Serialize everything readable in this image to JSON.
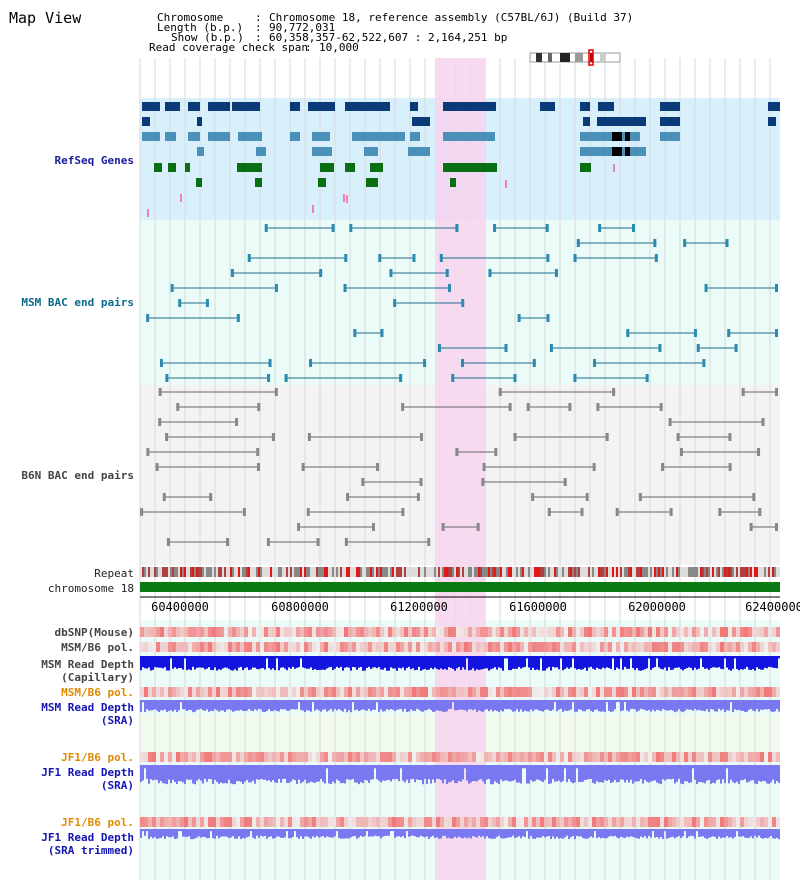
{
  "title": "Map View",
  "header": {
    "chromosome_key": "Chromosome",
    "chromosome_val": "Chromosome 18, reference assembly (C57BL/6J) (Build 37)",
    "length_key": "Length (b.p.)",
    "length_val": "90,772,031",
    "show_key": "Show (b.p.)",
    "show_val": "60,358,357-62,522,607 : 2,164,251 bp",
    "coverage_key": "Read coverage check span",
    "coverage_val": "10,000"
  },
  "tracks": {
    "refseq": "RefSeq Genes",
    "msm_bac": "MSM BAC end pairs",
    "b6n_bac": "B6N BAC end pairs",
    "repeat": "Repeat",
    "chromosome": "chromosome 18",
    "dbsnp": "dbSNP(Mouse)",
    "msm_b6_pol_1": "MSM/B6 pol.",
    "msm_read_depth_cap_1": "MSM Read Depth",
    "msm_read_depth_cap_2": "(Capillary)",
    "msm_b6_pol_2": "MSM/B6 pol.",
    "msm_read_depth_sra_1": "MSM Read Depth",
    "msm_read_depth_sra_2": "(SRA)",
    "jf1_b6_pol_1": "JF1/B6 pol.",
    "jf1_read_depth_sra_1": "JF1 Read Depth",
    "jf1_read_depth_sra_2": "(SRA)",
    "jf1_b6_pol_2": "JF1/B6 pol.",
    "jf1_read_depth_trim_1": "JF1 Read Depth",
    "jf1_read_depth_trim_2": "(SRA trimmed)"
  },
  "axis": {
    "ticks": [
      "60400000",
      "60800000",
      "61200000",
      "61600000",
      "62000000",
      "62400000"
    ]
  },
  "colors": {
    "highlight": "#f7d3ee",
    "refseq_bg": "#d8f0fb",
    "bac_bg": "#ebfbf8",
    "b6n_bg": "#f3f3f3",
    "gene_navy": "#0b3a78",
    "gene_steel": "#4a90b8",
    "gene_green": "#0a6e12",
    "chromosome_bar": "#0a7a12",
    "depth_blue": "#1414e0",
    "depth_lilac": "#7a78f0"
  }
}
